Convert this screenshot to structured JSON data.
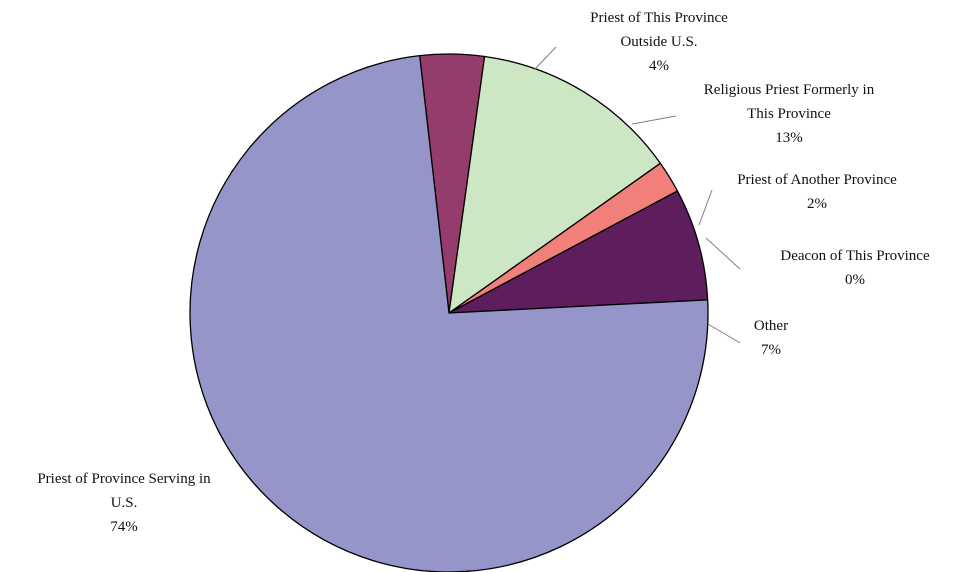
{
  "chart_data": {
    "type": "pie",
    "title": "",
    "start_angle_deg": -6.5,
    "direction": "clockwise",
    "slices": [
      {
        "label_lines": [
          "Priest of This Province",
          "Outside U.S."
        ],
        "percent_label": "4%",
        "value": 4,
        "color": "#943c6b"
      },
      {
        "label_lines": [
          "Religious Priest Formerly in",
          "This Province"
        ],
        "percent_label": "13%",
        "value": 13,
        "color": "#cde6c4"
      },
      {
        "label_lines": [
          "Priest of Another Province"
        ],
        "percent_label": "2%",
        "value": 2,
        "color": "#f08079"
      },
      {
        "label_lines": [
          "Deacon of This Province"
        ],
        "percent_label": "0%",
        "value": 0,
        "color": "#cccccc"
      },
      {
        "label_lines": [
          "Other"
        ],
        "percent_label": "7%",
        "value": 7,
        "color": "#5e1e5e"
      },
      {
        "label_lines": [
          "Priest of Province Serving in",
          "U.S."
        ],
        "percent_label": "74%",
        "value": 74,
        "color": "#9595c9"
      }
    ]
  }
}
